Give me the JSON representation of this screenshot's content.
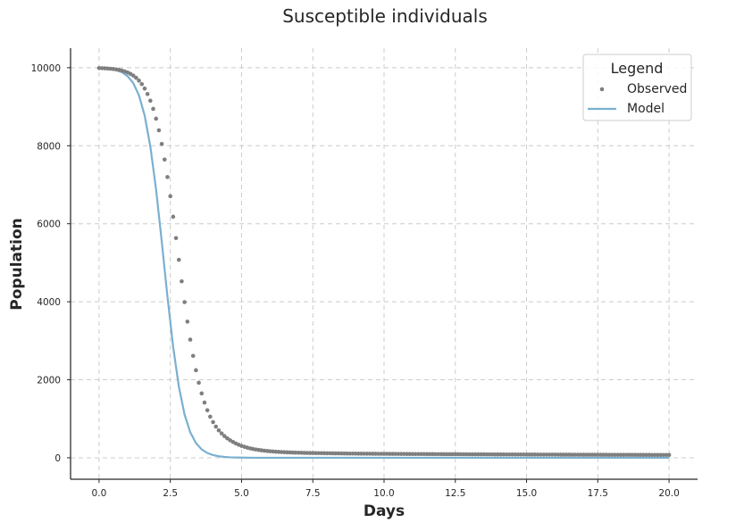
{
  "chart_data": {
    "type": "scatter",
    "title": "Susceptible individuals",
    "xlabel": "Days",
    "ylabel": "Population",
    "xlim": [
      -1.0,
      21.0
    ],
    "ylim": [
      -550,
      10500
    ],
    "xticks": [
      0.0,
      2.5,
      5.0,
      7.5,
      10.0,
      12.5,
      15.0,
      17.5,
      20.0
    ],
    "xtick_labels": [
      "0.0",
      "2.5",
      "5.0",
      "7.5",
      "10.0",
      "12.5",
      "15.0",
      "17.5",
      "20.0"
    ],
    "yticks": [
      0,
      2000,
      4000,
      6000,
      8000,
      10000
    ],
    "ytick_labels": [
      "0",
      "2000",
      "4000",
      "6000",
      "8000",
      "10000"
    ],
    "grid": true,
    "legend": {
      "title": "Legend",
      "position": "top-right"
    },
    "series": [
      {
        "name": "Observed",
        "kind": "scatter",
        "color": "#7f7f7f",
        "x": [
          0.0,
          0.1,
          0.2,
          0.3,
          0.4,
          0.5,
          0.6,
          0.7,
          0.8,
          0.9,
          1.0,
          1.1,
          1.2,
          1.3,
          1.4,
          1.5,
          1.6,
          1.7,
          1.8,
          1.9,
          2.0,
          2.1,
          2.2,
          2.3,
          2.4,
          2.5,
          2.6,
          2.7,
          2.8,
          2.9,
          3.0,
          3.1,
          3.2,
          3.3,
          3.4,
          3.5,
          3.6,
          3.7,
          3.8,
          3.9,
          4.0,
          4.1,
          4.2,
          4.3,
          4.4,
          4.5,
          4.6,
          4.7,
          4.8,
          4.9,
          5.0,
          5.1,
          5.2,
          5.3,
          5.4,
          5.5,
          5.6,
          5.7,
          5.8,
          5.9,
          6.0,
          6.1,
          6.2,
          6.3,
          6.4,
          6.5,
          6.6,
          6.7,
          6.8,
          6.9,
          7.0,
          7.1,
          7.2,
          7.3,
          7.4,
          7.5,
          7.6,
          7.7,
          7.8,
          7.9,
          8.0,
          8.1,
          8.2,
          8.3,
          8.4,
          8.5,
          8.6,
          8.7,
          8.8,
          8.9,
          9.0,
          9.1,
          9.2,
          9.3,
          9.4,
          9.5,
          9.6,
          9.7,
          9.8,
          9.9,
          10.0,
          10.1,
          10.2,
          10.3,
          10.4,
          10.5,
          10.6,
          10.7,
          10.8,
          10.9,
          11.0,
          11.1,
          11.2,
          11.3,
          11.4,
          11.5,
          11.6,
          11.7,
          11.8,
          11.9,
          12.0,
          12.1,
          12.2,
          12.3,
          12.4,
          12.5,
          12.6,
          12.7,
          12.8,
          12.9,
          13.0,
          13.1,
          13.2,
          13.3,
          13.4,
          13.5,
          13.6,
          13.7,
          13.8,
          13.9,
          14.0,
          14.1,
          14.2,
          14.3,
          14.4,
          14.5,
          14.6,
          14.7,
          14.8,
          14.9,
          15.0,
          15.1,
          15.2,
          15.3,
          15.4,
          15.5,
          15.6,
          15.7,
          15.8,
          15.9,
          16.0,
          16.1,
          16.2,
          16.3,
          16.4,
          16.5,
          16.6,
          16.7,
          16.8,
          16.9,
          17.0,
          17.1,
          17.2,
          17.3,
          17.4,
          17.5,
          17.6,
          17.7,
          17.8,
          17.9,
          18.0,
          18.1,
          18.2,
          18.3,
          18.4,
          18.5,
          18.6,
          18.7,
          18.8,
          18.9,
          19.0,
          19.1,
          19.2,
          19.3,
          19.4,
          19.5,
          19.6,
          19.7,
          19.8,
          19.9,
          20.0
        ],
        "y": [
          9990,
          9987,
          9984,
          9979,
          9973,
          9966,
          9956,
          9943,
          9927,
          9905,
          9878,
          9843,
          9798,
          9741,
          9669,
          9579,
          9466,
          9326,
          9154,
          8945,
          8693,
          8394,
          8045,
          7645,
          7197,
          6706,
          6180,
          5632,
          5075,
          4523,
          3991,
          3490,
          3029,
          2613,
          2245,
          1925,
          1650,
          1415,
          1218,
          1053,
          915,
          800,
          704,
          624,
          556,
          498,
          448,
          404,
          367,
          334,
          305,
          281,
          260,
          242,
          226,
          213,
          201,
          191,
          182,
          174,
          167,
          161,
          156,
          151,
          147,
          143,
          140,
          137,
          134,
          132,
          130,
          128,
          126,
          124,
          123,
          121,
          120,
          119,
          118,
          117,
          116,
          115,
          114,
          113,
          112,
          111,
          110,
          109,
          108,
          108,
          107,
          106,
          106,
          105,
          104,
          104,
          103,
          103,
          102,
          102,
          101,
          101,
          100,
          100,
          99,
          99,
          98,
          98,
          97,
          97,
          96,
          96,
          96,
          95,
          95,
          94,
          94,
          94,
          93,
          93,
          93,
          92,
          92,
          92,
          91,
          91,
          91,
          90,
          90,
          90,
          89,
          89,
          89,
          88,
          88,
          88,
          87,
          87,
          87,
          86,
          86,
          86,
          86,
          85,
          85,
          85,
          84,
          84,
          84,
          84,
          83,
          83,
          83,
          83,
          82,
          82,
          82,
          82,
          81,
          81,
          81,
          81,
          80,
          80,
          80,
          80,
          79,
          79,
          79,
          79,
          78,
          78,
          78,
          78,
          78,
          77,
          77,
          77,
          77,
          76,
          76,
          76,
          76,
          76,
          75,
          75,
          75,
          75,
          75,
          74,
          74,
          74,
          74,
          74,
          73,
          73,
          73,
          73,
          73,
          72,
          72
        ]
      },
      {
        "name": "Model",
        "kind": "line",
        "color": "#7ab0cf",
        "x": [
          0.0,
          0.2,
          0.4,
          0.6,
          0.8,
          1.0,
          1.2,
          1.4,
          1.6,
          1.8,
          2.0,
          2.2,
          2.4,
          2.6,
          2.8,
          3.0,
          3.2,
          3.4,
          3.6,
          3.8,
          4.0,
          4.2,
          4.4,
          4.6,
          4.8,
          5.0,
          5.2,
          5.4,
          5.6,
          5.8,
          6.0,
          6.5,
          7.0,
          7.5,
          8.0,
          9.0,
          10.0,
          12.0,
          14.0,
          16.0,
          18.0,
          20.0
        ],
        "y": [
          9990,
          9982,
          9966,
          9937,
          9883,
          9784,
          9605,
          9292,
          8773,
          7977,
          6879,
          5541,
          4130,
          2844,
          1825,
          1109,
          653,
          376,
          215,
          122,
          69,
          39,
          22,
          12,
          7,
          4,
          2,
          1,
          1,
          0,
          0,
          0,
          0,
          0,
          0,
          0,
          0,
          0,
          0,
          0,
          0,
          0
        ]
      }
    ]
  }
}
